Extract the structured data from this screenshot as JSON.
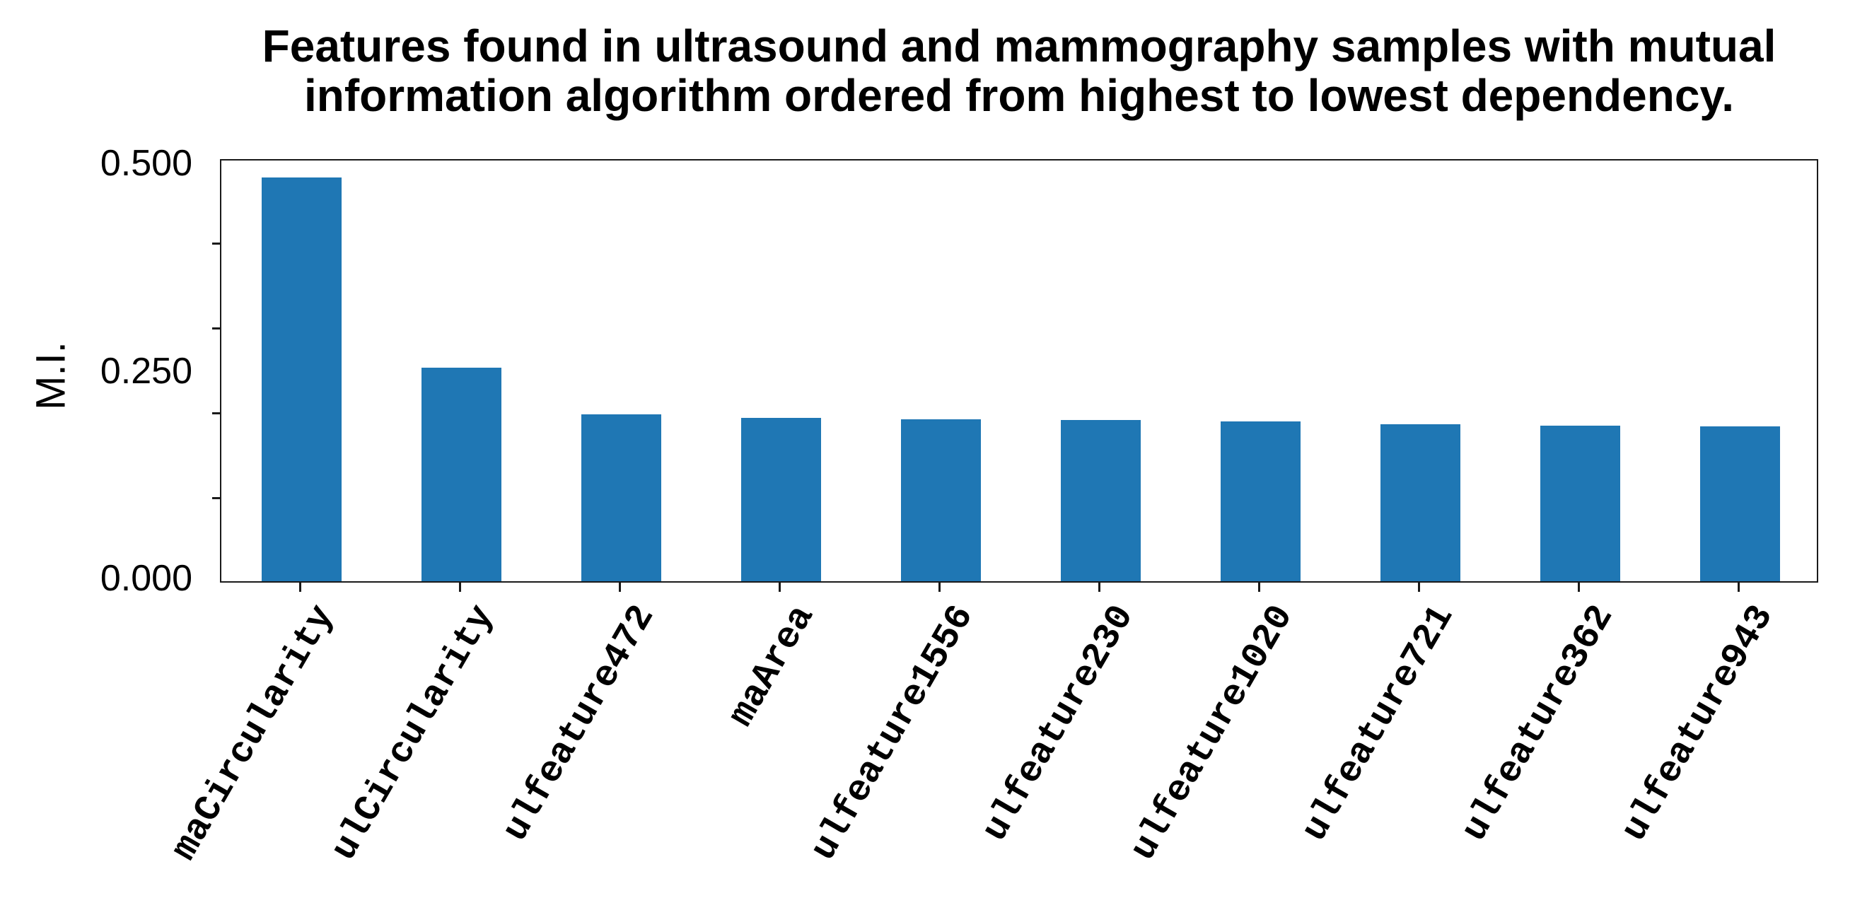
{
  "title": {
    "line1": "Features found in ultrasound and mammography samples with mutual",
    "line2": "information algorithm ordered from highest to lowest dependency."
  },
  "y_axis": {
    "label": "M.I.",
    "tick_labels": [
      {
        "text": "0.500",
        "value": 0.5
      },
      {
        "text": "0.250",
        "value": 0.25
      },
      {
        "text": "0.000",
        "value": 0.0
      }
    ],
    "minor_tick_values": [
      0.4,
      0.3,
      0.2,
      0.1
    ]
  },
  "chart_data": {
    "type": "bar",
    "title": "Features found in ultrasound and mammography samples with mutual information algorithm ordered from highest to lowest dependency.",
    "xlabel": "",
    "ylabel": "M.I.",
    "ylim": [
      0,
      0.5
    ],
    "yticks_labeled": [
      0.0,
      0.25,
      0.5
    ],
    "yticks_minor": [
      0.1,
      0.2,
      0.3,
      0.4
    ],
    "grid": false,
    "legend": "none",
    "bar_color": "#1f77b4",
    "categories": [
      "maCircularity",
      "ulCircularity",
      "ulfeature472",
      "maArea",
      "ulfeature1556",
      "ulfeature230",
      "ulfeature1020",
      "ulfeature721",
      "ulfeature362",
      "ulfeature943"
    ],
    "values": [
      0.477,
      0.252,
      0.197,
      0.193,
      0.191,
      0.19,
      0.189,
      0.185,
      0.184,
      0.183
    ],
    "x_label_rotation_deg": 60
  }
}
